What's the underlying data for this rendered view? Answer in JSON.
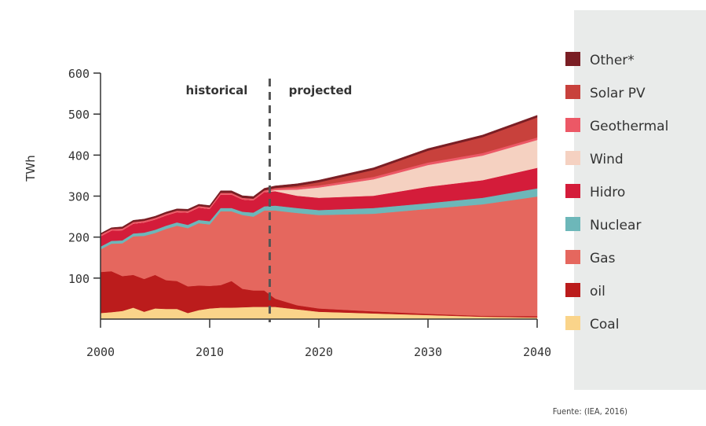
{
  "chart_data": {
    "type": "area",
    "stacked": true,
    "title": "",
    "xlabel": "",
    "ylabel": "TWh",
    "xlim": [
      2000,
      2040
    ],
    "ylim": [
      0,
      600
    ],
    "x_ticks": [
      "2000",
      "2010",
      "2020",
      "2030",
      "2040"
    ],
    "y_ticks": [
      "100",
      "200",
      "300",
      "400",
      "500",
      "600"
    ],
    "phase_labels": {
      "historical": "historical",
      "projected": "projected"
    },
    "divider_year": 2015.5,
    "x": [
      2000,
      2001,
      2002,
      2003,
      2004,
      2005,
      2006,
      2007,
      2008,
      2009,
      2010,
      2011,
      2012,
      2013,
      2014,
      2015,
      2016,
      2018,
      2020,
      2025,
      2030,
      2035,
      2040
    ],
    "series": [
      {
        "name": "Coal",
        "color": "#fad48a",
        "values": [
          15,
          17,
          20,
          28,
          18,
          26,
          25,
          25,
          15,
          22,
          26,
          28,
          28,
          29,
          30,
          30,
          30,
          24,
          18,
          14,
          10,
          6,
          4
        ]
      },
      {
        "name": "oil",
        "color": "#bb1c1c",
        "values": [
          100,
          100,
          85,
          80,
          80,
          82,
          70,
          68,
          65,
          60,
          55,
          55,
          65,
          45,
          40,
          40,
          20,
          10,
          8,
          5,
          3,
          2,
          3
        ]
      },
      {
        "name": "Gas",
        "color": "#e5675e",
        "values": [
          55,
          67,
          80,
          94,
          105,
          102,
          125,
          135,
          142,
          152,
          150,
          180,
          170,
          180,
          180,
          195,
          215,
          225,
          228,
          238,
          256,
          272,
          292
        ]
      },
      {
        "name": "Nuclear",
        "color": "#6db7b9",
        "values": [
          7,
          7,
          7,
          7,
          8,
          8,
          8,
          8,
          8,
          8,
          8,
          8,
          8,
          8,
          10,
          10,
          12,
          12,
          12,
          14,
          14,
          16,
          20
        ]
      },
      {
        "name": "Hidro",
        "color": "#d41c3a",
        "values": [
          25,
          25,
          25,
          24,
          25,
          25,
          25,
          25,
          30,
          30,
          30,
          33,
          33,
          30,
          30,
          35,
          35,
          30,
          30,
          30,
          40,
          43,
          50
        ]
      },
      {
        "name": "Wind",
        "color": "#f5d1c1",
        "values": [
          0,
          0,
          0,
          0,
          0,
          0,
          0,
          0,
          0,
          0,
          0,
          0,
          0,
          0,
          0,
          0,
          3,
          15,
          25,
          40,
          53,
          60,
          68
        ]
      },
      {
        "name": "Geothermal",
        "color": "#ec5866",
        "values": [
          4,
          4,
          4,
          4,
          4,
          4,
          4,
          4,
          4,
          4,
          4,
          4,
          4,
          4,
          4,
          4,
          4,
          5,
          5,
          6,
          6,
          6,
          6
        ]
      },
      {
        "name": "Solar PV",
        "color": "#c8413c",
        "values": [
          0,
          0,
          0,
          0,
          0,
          0,
          0,
          0,
          0,
          0,
          0,
          0,
          0,
          0,
          0,
          0,
          1,
          4,
          8,
          17,
          29,
          39,
          49
        ]
      },
      {
        "name": "Other*",
        "color": "#7a1e24",
        "values": [
          3,
          3,
          4,
          4,
          4,
          4,
          4,
          4,
          4,
          4,
          4,
          5,
          5,
          5,
          5,
          5,
          5,
          5,
          5,
          5,
          5,
          5,
          5
        ]
      }
    ],
    "legend_placement": "right",
    "legend_order": [
      "Other*",
      "Solar PV",
      "Geothermal",
      "Wind",
      "Hidro",
      "Nuclear",
      "Gas",
      "oil",
      "Coal"
    ],
    "grid": false
  },
  "source": "Fuente: (IEA, 2016)",
  "colors": {
    "legend_panel": "#e9ebea",
    "divider": "#555555",
    "axis": "#333333"
  }
}
